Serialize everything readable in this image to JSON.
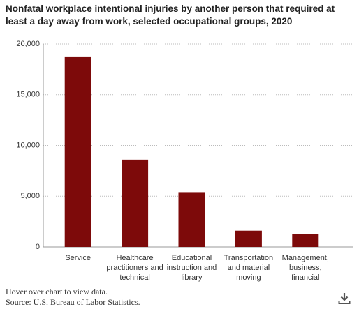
{
  "chart_data": {
    "type": "bar",
    "title": "Nonfatal workplace intentional injuries by another person that required at least a day away from work, selected occupational groups, 2020",
    "categories": [
      "Service",
      "Healthcare practitioners and technical",
      "Educational instruction and library",
      "Transportation and material moving",
      "Management, business, financial"
    ],
    "values": [
      18700,
      8600,
      5400,
      1600,
      1300
    ],
    "color": "#7d0a0a",
    "ylim": [
      0,
      20000
    ],
    "yticks": [
      0,
      {
        "value": 5000,
        "label": "5,000"
      },
      {
        "value": 10000,
        "label": "10,000"
      },
      {
        "value": 15000,
        "label": "15,000"
      },
      {
        "value": 20000,
        "label": "20,000"
      }
    ],
    "grid": true,
    "note": "Hover over chart to view data.",
    "source": "Source: U.S. Bureau of Labor Statistics."
  }
}
